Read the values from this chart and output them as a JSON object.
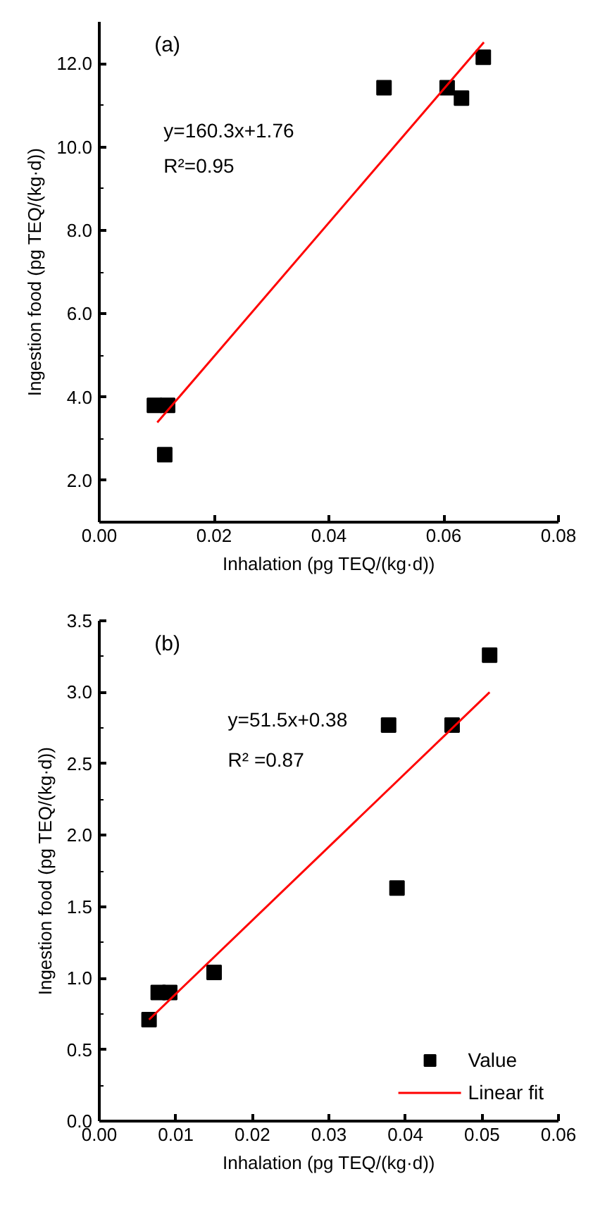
{
  "chart_data": [
    {
      "type": "scatter",
      "xlabel": "Inhalation (pg TEQ/(kg·d))",
      "ylabel": "Ingestion food (pg TEQ/(kg·d))",
      "annotations": [
        "(a)",
        "y=160.3x+1.76",
        "R²=0.95"
      ],
      "xlim": [
        0,
        0.08
      ],
      "ylim": [
        1,
        13
      ],
      "xticks": [
        {
          "value": 0,
          "label": "0.00"
        },
        0.02,
        0.04,
        0.06,
        0.08
      ],
      "yticks": [
        {
          "value": 2,
          "label": "2.0"
        },
        {
          "value": 4,
          "label": "4.0"
        },
        {
          "value": 6,
          "label": "6.0"
        },
        {
          "value": 8,
          "label": "8.0"
        },
        {
          "value": 10,
          "label": "10.0"
        },
        {
          "value": 12,
          "label": "12.0"
        }
      ],
      "grid": false,
      "legend": false,
      "series": [
        {
          "marker": "square",
          "color": "#000000",
          "x": [
            0.0096,
            0.0119,
            0.0114,
            0.0496,
            0.0606,
            0.0631,
            0.0669
          ],
          "values": [
            3.8,
            3.8,
            2.62,
            11.42,
            11.42,
            11.17,
            12.15
          ]
        },
        {
          "type": "line",
          "marker": "none",
          "color": "#ff0000",
          "x": [
            0.0101,
            0.067
          ],
          "values": [
            3.39,
            12.51
          ]
        }
      ]
    },
    {
      "type": "scatter",
      "xlabel": "Inhalation (pg TEQ/(kg·d))",
      "ylabel": "Ingestion food (pg TEQ/(kg·d))",
      "annotations": [
        "(b)",
        "y=51.5x+0.38",
        "R² =0.87"
      ],
      "xlim": [
        0,
        0.06
      ],
      "ylim": [
        0,
        3.5
      ],
      "xticks": [
        {
          "value": 0,
          "label": "0.00"
        },
        0.01,
        0.02,
        0.03,
        0.04,
        0.05,
        0.06
      ],
      "yticks": [
        {
          "value": 0,
          "label": "0.0"
        },
        0.5,
        {
          "value": 1,
          "label": "1.0"
        },
        1.5,
        {
          "value": 2,
          "label": "2.0"
        },
        2.5,
        {
          "value": 3,
          "label": "3.0"
        },
        3.5
      ],
      "grid": false,
      "legend": "bottom right",
      "series": [
        {
          "name": "Value",
          "marker": "square",
          "color": "#000000",
          "x": [
            0.0065,
            0.0077,
            0.0092,
            0.015,
            0.0378,
            0.0389,
            0.0461,
            0.051
          ],
          "values": [
            0.71,
            0.9,
            0.9,
            1.04,
            2.77,
            1.63,
            2.77,
            3.26
          ]
        },
        {
          "type": "line",
          "marker": "none",
          "name": "Linear fit",
          "color": "#ff0000",
          "x": [
            0.0065,
            0.051
          ],
          "values": [
            0.71,
            3.0
          ]
        }
      ]
    }
  ]
}
